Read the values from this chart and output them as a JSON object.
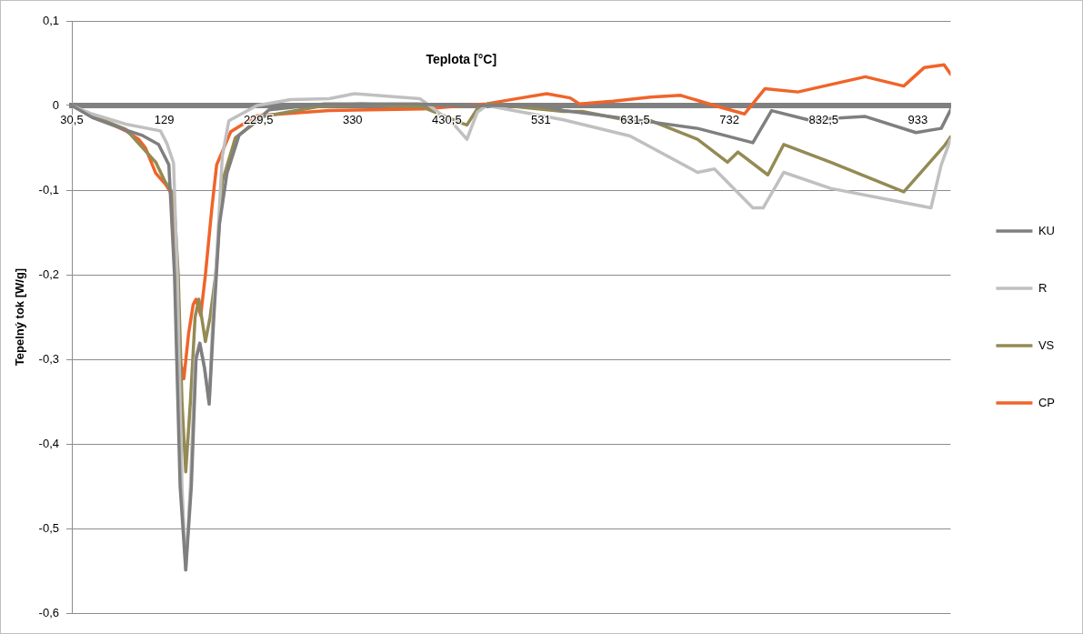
{
  "chart_data": {
    "type": "line",
    "xlabel": "Teplota [°C]",
    "ylabel": "Tepelný tok [W/g]",
    "xlim": [
      30.5,
      968
    ],
    "ylim": [
      -0.6,
      0.1
    ],
    "xticks": [
      {
        "value": 30.5,
        "label": "30,5"
      },
      129,
      {
        "value": 229.5,
        "label": "229,5"
      },
      330,
      {
        "value": 430.5,
        "label": "430,5"
      },
      531,
      {
        "value": 631.5,
        "label": "631,5"
      },
      732,
      {
        "value": 832.5,
        "label": "832,5"
      },
      933
    ],
    "yticks": [
      {
        "value": -0.6,
        "label": "-0,6"
      },
      {
        "value": -0.5,
        "label": "-0,5"
      },
      {
        "value": -0.4,
        "label": "-0,4"
      },
      {
        "value": -0.3,
        "label": "-0,3"
      },
      {
        "value": -0.2,
        "label": "-0,2"
      },
      {
        "value": -0.1,
        "label": "-0,1"
      },
      0,
      {
        "value": 0.1,
        "label": "0,1"
      }
    ],
    "grid": "y",
    "legend": "right",
    "marker": "none",
    "line_style": "solid",
    "series": [
      {
        "name": "KU",
        "color": "#7f7f7f",
        "x": [
          30.5,
          52,
          88,
          105,
          123,
          134,
          140,
          146,
          152,
          158,
          163,
          167,
          172,
          177,
          182,
          188,
          196,
          209,
          241,
          300,
          340,
          400,
          430,
          530,
          555,
          626,
          698,
          757,
          777,
          816,
          877,
          931,
          958,
          968
        ],
        "values": [
          0,
          -0.014,
          -0.029,
          -0.035,
          -0.046,
          -0.07,
          -0.2,
          -0.45,
          -0.549,
          -0.45,
          -0.3,
          -0.281,
          -0.31,
          -0.353,
          -0.25,
          -0.14,
          -0.08,
          -0.035,
          -0.005,
          0.002,
          0.002,
          0.002,
          0,
          0,
          -0.006,
          -0.016,
          -0.027,
          -0.044,
          -0.006,
          -0.017,
          -0.013,
          -0.032,
          -0.027,
          -0.005
        ]
      },
      {
        "name": "R",
        "color": "#c0c0c0",
        "x": [
          30.5,
          52,
          88,
          125,
          132,
          139,
          143,
          148,
          152,
          157,
          162,
          167,
          172,
          177,
          181,
          184,
          191,
          198,
          228,
          264,
          305,
          332,
          402,
          412,
          437,
          452,
          463,
          473,
          555,
          626,
          698,
          716,
          757,
          768,
          790,
          840,
          947,
          958,
          968
        ],
        "values": [
          0,
          -0.01,
          -0.022,
          -0.03,
          -0.045,
          -0.068,
          -0.2,
          -0.45,
          -0.549,
          -0.45,
          -0.3,
          -0.281,
          -0.31,
          -0.35,
          -0.25,
          -0.2,
          -0.06,
          -0.018,
          0,
          0.007,
          0.008,
          0.014,
          0.008,
          0,
          -0.021,
          -0.04,
          -0.008,
          0,
          -0.017,
          -0.036,
          -0.079,
          -0.075,
          -0.121,
          -0.121,
          -0.079,
          -0.098,
          -0.121,
          -0.07,
          -0.04
        ]
      },
      {
        "name": "VS",
        "color": "#948a54",
        "x": [
          30.5,
          52,
          88,
          120,
          130,
          139,
          144,
          148,
          152,
          157,
          162,
          166,
          173,
          178,
          184,
          191,
          205,
          235,
          300,
          340,
          405,
          447,
          452,
          463,
          475,
          555,
          575,
          626,
          648,
          698,
          730,
          741,
          773,
          790,
          840,
          918,
          961,
          968
        ],
        "values": [
          0,
          -0.012,
          -0.028,
          -0.067,
          -0.09,
          -0.105,
          -0.2,
          -0.35,
          -0.433,
          -0.35,
          -0.25,
          -0.229,
          -0.279,
          -0.25,
          -0.2,
          -0.09,
          -0.038,
          -0.013,
          0,
          0.002,
          -0.002,
          -0.021,
          -0.023,
          -0.004,
          0.002,
          -0.007,
          -0.007,
          -0.018,
          -0.018,
          -0.04,
          -0.067,
          -0.055,
          -0.082,
          -0.046,
          -0.067,
          -0.102,
          -0.048,
          -0.037
        ]
      },
      {
        "name": "CP",
        "color": "#f0642a",
        "x": [
          30.5,
          52,
          88,
          102,
          109,
          120,
          131,
          137,
          142,
          146,
          150,
          155,
          160,
          163,
          168,
          173,
          180,
          185,
          200,
          228,
          305,
          405,
          473,
          510,
          537,
          562,
          572,
          608,
          648,
          680,
          716,
          748,
          770,
          805,
          877,
          918,
          940,
          961,
          968
        ],
        "values": [
          0,
          -0.011,
          -0.03,
          -0.04,
          -0.05,
          -0.08,
          -0.094,
          -0.105,
          -0.2,
          -0.3,
          -0.323,
          -0.27,
          -0.235,
          -0.229,
          -0.248,
          -0.2,
          -0.12,
          -0.07,
          -0.031,
          -0.012,
          -0.006,
          -0.004,
          0.002,
          0.009,
          0.014,
          0.009,
          0.002,
          0.005,
          0.01,
          0.012,
          0,
          -0.01,
          0.02,
          0.016,
          0.034,
          0.023,
          0.045,
          0.048,
          0.037
        ]
      }
    ]
  }
}
